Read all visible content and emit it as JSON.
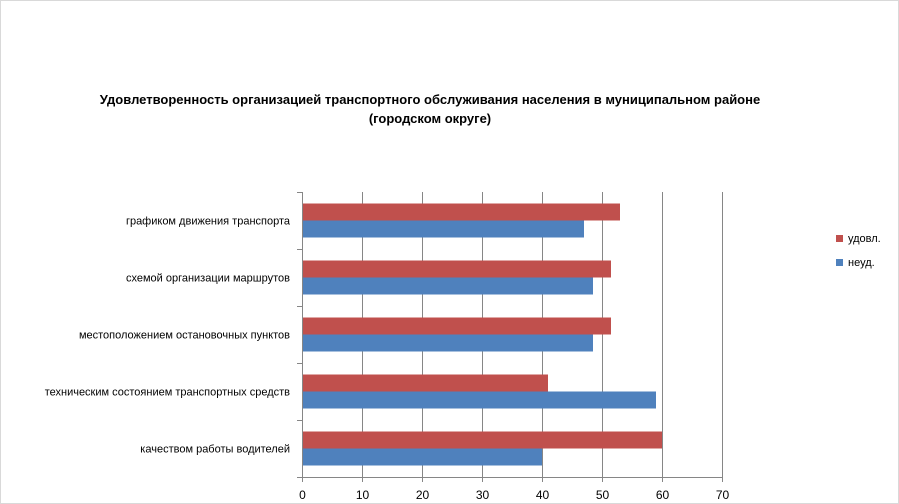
{
  "chart_data": {
    "type": "bar",
    "orientation": "horizontal",
    "title_line1": "Удовлетворенность организацией транспортного обслуживания населения в муниципальном районе",
    "title_line2": "(городском округе)",
    "categories": [
      "графиком движения  транспорта",
      "схемой организации маршрутов",
      "местоположением  остановочных пунктов",
      "техническим  состоянием транспортных средств",
      "качеством  работы водителей"
    ],
    "series": [
      {
        "name": "удовл.",
        "color": "#c0504d",
        "values": [
          53,
          51.5,
          51.5,
          41,
          60
        ]
      },
      {
        "name": "неуд.",
        "color": "#4f81bd",
        "values": [
          47,
          48.5,
          48.5,
          59,
          40
        ]
      }
    ],
    "xlim": [
      0,
      70
    ],
    "xticks": [
      "0",
      "10",
      "20",
      "30",
      "40",
      "50",
      "60",
      "70"
    ],
    "grid": true,
    "legend_position": "right"
  }
}
